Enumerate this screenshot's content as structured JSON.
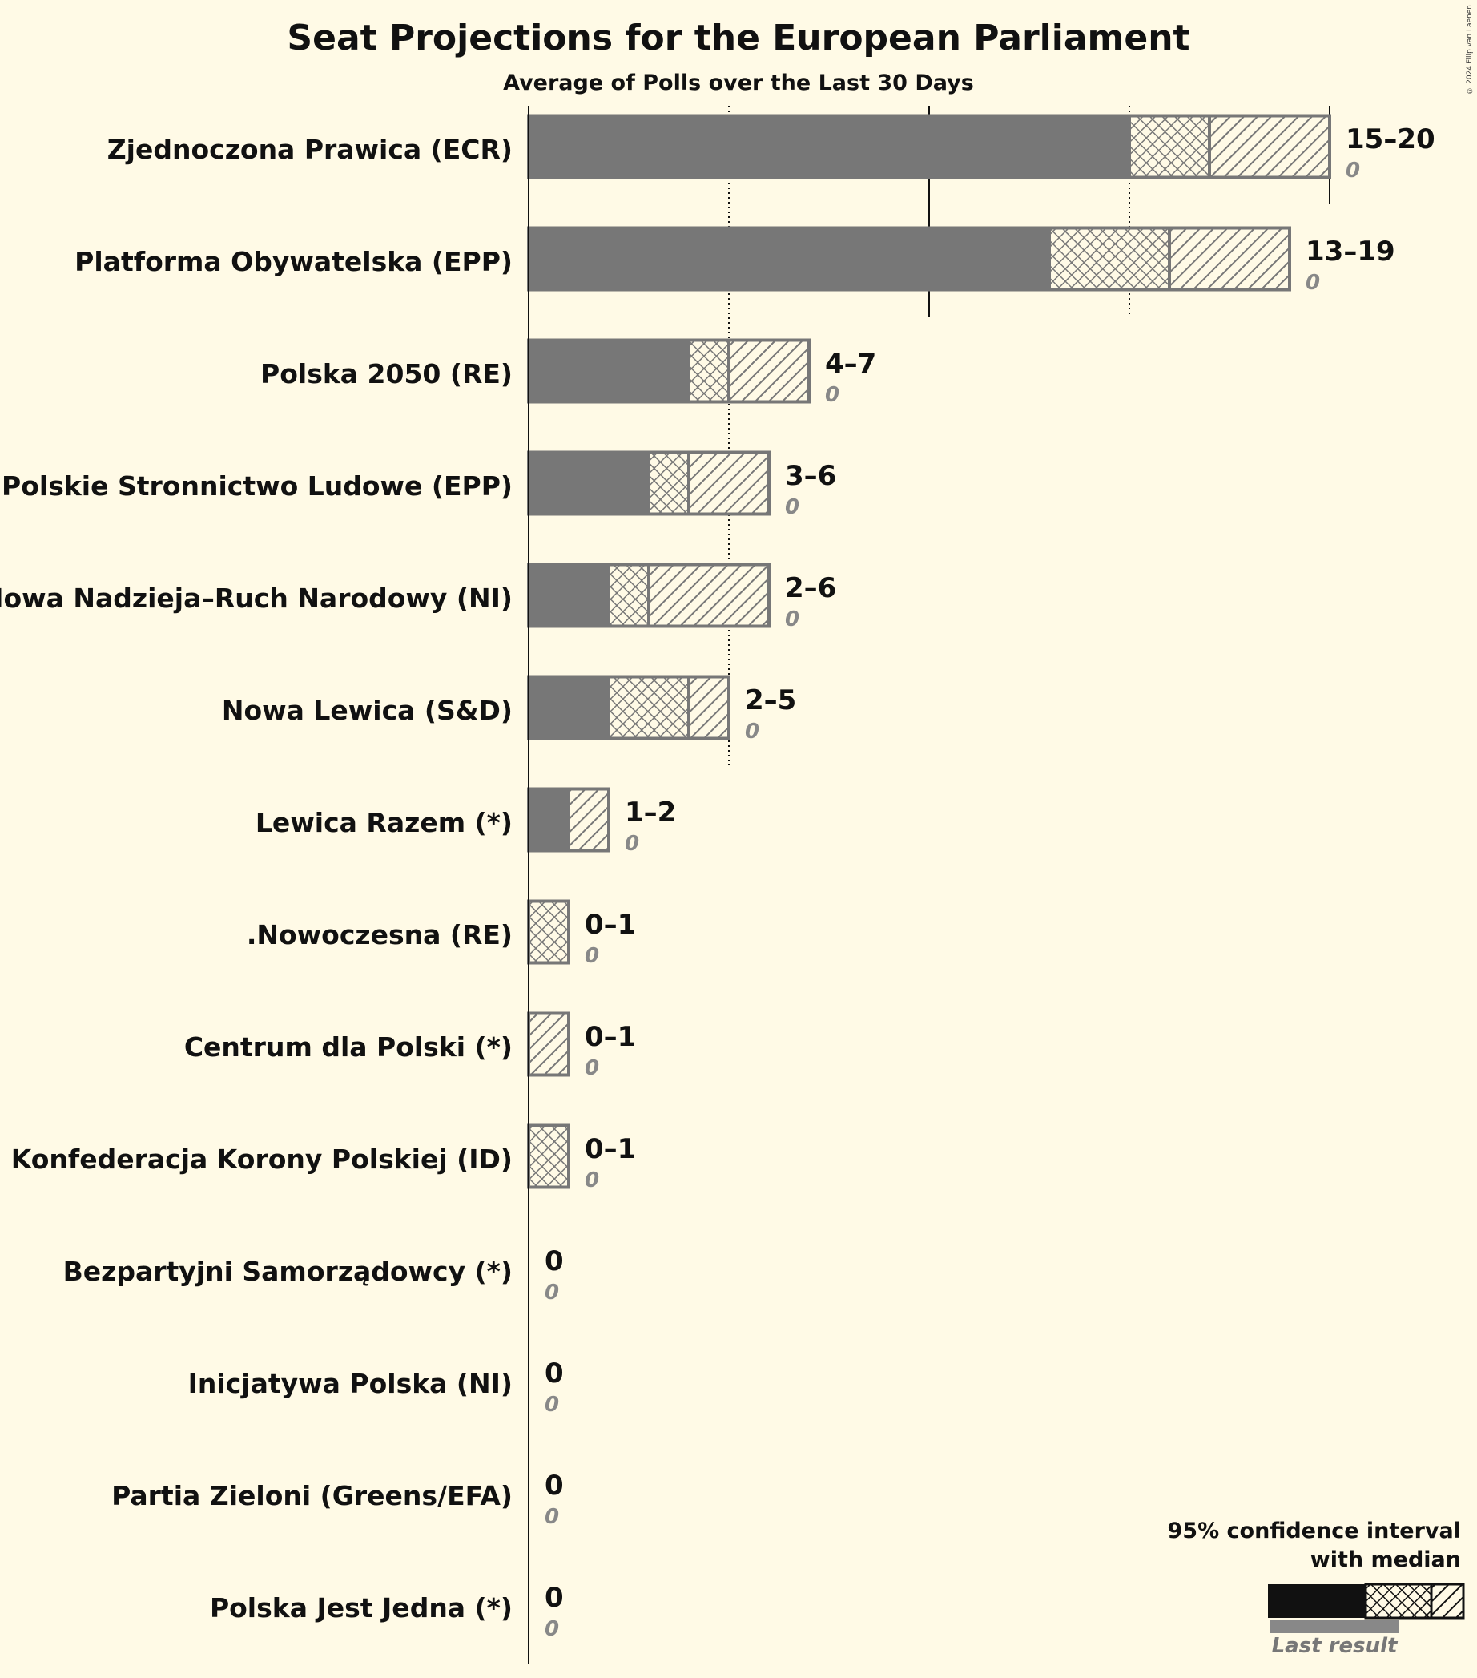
{
  "title": "Seat Projections for the European Parliament",
  "subtitle": "Average of Polls over the Last 30 Days",
  "copyright": "© 2024 Filip van Laenen",
  "colors": {
    "background": "#FFFAE6",
    "bar": "#777777",
    "legend_bar": "#111111",
    "last_result": "#888888"
  },
  "legend": {
    "ci_label_line1": "95% confidence interval",
    "ci_label_line2": "with median",
    "last_result_label": "Last result"
  },
  "chart_data": {
    "type": "bar",
    "orientation": "horizontal",
    "title": "Seat Projections for the European Parliament",
    "subtitle": "Average of Polls over the Last 30 Days",
    "xlim": [
      0,
      20
    ],
    "gridlines": [
      5,
      10,
      15,
      20
    ],
    "parties": [
      {
        "name": "Zjednoczona Prawica (ECR)",
        "low": 15,
        "median": 17,
        "high": 20,
        "range_label": "15–20",
        "last_label": "0",
        "last": 0
      },
      {
        "name": "Platforma Obywatelska (EPP)",
        "low": 13,
        "median": 16,
        "high": 19,
        "range_label": "13–19",
        "last_label": "0",
        "last": 0
      },
      {
        "name": "Polska 2050 (RE)",
        "low": 4,
        "median": 5,
        "high": 7,
        "range_label": "4–7",
        "last_label": "0",
        "last": 0
      },
      {
        "name": "Polskie Stronnictwo Ludowe (EPP)",
        "low": 3,
        "median": 4,
        "high": 6,
        "range_label": "3–6",
        "last_label": "0",
        "last": 0
      },
      {
        "name": "Nowa Nadzieja–Ruch Narodowy (NI)",
        "low": 2,
        "median": 3,
        "high": 6,
        "range_label": "2–6",
        "last_label": "0",
        "last": 0
      },
      {
        "name": "Nowa Lewica (S&D)",
        "low": 2,
        "median": 4,
        "high": 5,
        "range_label": "2–5",
        "last_label": "0",
        "last": 0
      },
      {
        "name": "Lewica Razem (*)",
        "low": 1,
        "median": 1,
        "high": 2,
        "range_label": "1–2",
        "last_label": "0",
        "last": 0
      },
      {
        "name": ".Nowoczesna (RE)",
        "low": 0,
        "median": 1,
        "high": 1,
        "range_label": "0–1",
        "last_label": "0",
        "last": 0
      },
      {
        "name": "Centrum dla Polski (*)",
        "low": 0,
        "median": 0,
        "high": 1,
        "range_label": "0–1",
        "last_label": "0",
        "last": 0
      },
      {
        "name": "Konfederacja Korony Polskiej (ID)",
        "low": 0,
        "median": 1,
        "high": 1,
        "range_label": "0–1",
        "last_label": "0",
        "last": 0
      },
      {
        "name": "Bezpartyjni Samorządowcy (*)",
        "low": 0,
        "median": 0,
        "high": 0,
        "range_label": "0",
        "last_label": "0",
        "last": 0
      },
      {
        "name": "Inicjatywa Polska (NI)",
        "low": 0,
        "median": 0,
        "high": 0,
        "range_label": "0",
        "last_label": "0",
        "last": 0
      },
      {
        "name": "Partia Zieloni (Greens/EFA)",
        "low": 0,
        "median": 0,
        "high": 0,
        "range_label": "0",
        "last_label": "0",
        "last": 0
      },
      {
        "name": "Polska Jest Jedna (*)",
        "low": 0,
        "median": 0,
        "high": 0,
        "range_label": "0",
        "last_label": "0",
        "last": 0
      }
    ]
  }
}
